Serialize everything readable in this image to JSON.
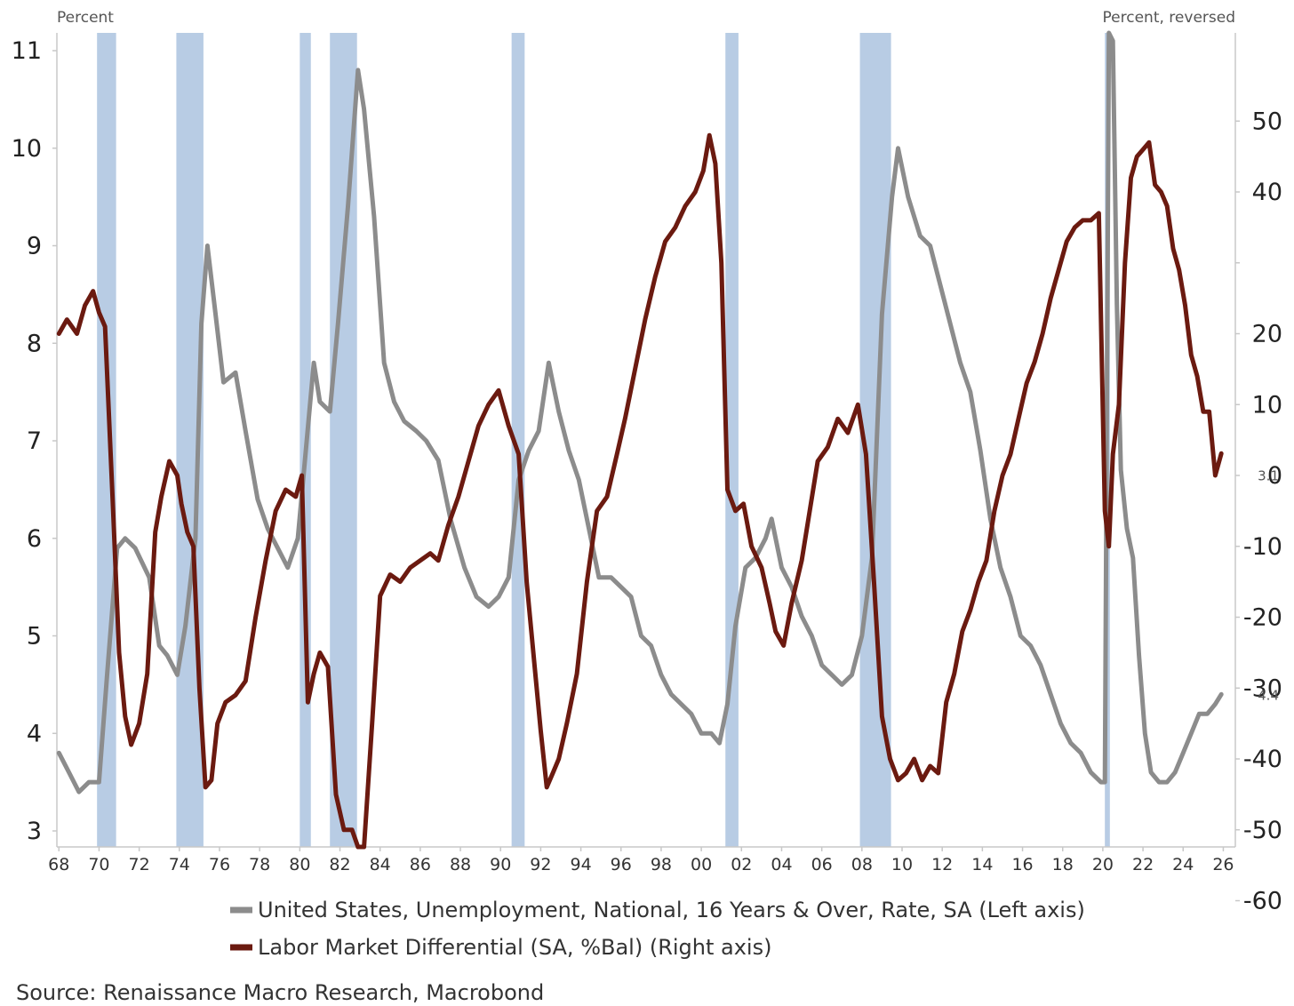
{
  "chart_data": {
    "type": "line",
    "left_axis_label": "Percent",
    "right_axis_label": "Percent, reversed",
    "left_ylim": [
      3,
      11
    ],
    "left_ticks": [
      3,
      4,
      5,
      6,
      7,
      8,
      9,
      10,
      11
    ],
    "right_ylim": [
      50,
      -60
    ],
    "right_reversed": true,
    "right_ticks": [
      50,
      40,
      30,
      20,
      10,
      0,
      -10,
      -20,
      -30,
      -40,
      -50,
      -60
    ],
    "right_tick_labels": [
      "50",
      "40",
      "",
      "20",
      "10",
      "0",
      "-10",
      "-20",
      "-30",
      "-40",
      "-50",
      "-60"
    ],
    "xlim": [
      1967.9,
      2026.6
    ],
    "x_ticks": [
      1968,
      1970,
      1972,
      1974,
      1976,
      1978,
      1980,
      1982,
      1984,
      1986,
      1988,
      1990,
      1992,
      1994,
      1996,
      1998,
      2000,
      2002,
      2004,
      2006,
      2008,
      2010,
      2012,
      2014,
      2016,
      2018,
      2020,
      2022,
      2024,
      2026
    ],
    "x_tick_labels": [
      "68",
      "70",
      "72",
      "74",
      "76",
      "78",
      "80",
      "82",
      "84",
      "86",
      "88",
      "90",
      "92",
      "94",
      "96",
      "98",
      "00",
      "02",
      "04",
      "06",
      "08",
      "10",
      "12",
      "14",
      "16",
      "18",
      "20",
      "22",
      "24",
      "26"
    ],
    "recessions": [
      [
        1969.9,
        1970.85
      ],
      [
        1973.85,
        1975.2
      ],
      [
        1980.0,
        1980.55
      ],
      [
        1981.5,
        1982.85
      ],
      [
        1990.55,
        1991.2
      ],
      [
        2001.2,
        2001.85
      ],
      [
        2007.9,
        2009.45
      ],
      [
        2020.1,
        2020.35
      ]
    ],
    "grid": false,
    "legend_position": "bottom",
    "series": [
      {
        "name": "United States, Unemployment, National, 16 Years & Over, Rate, SA (Left axis)",
        "axis": "left",
        "color": "#8c8c8c",
        "end_label": "4.4",
        "x": [
          1968.0,
          1968.5,
          1969.0,
          1969.5,
          1970.0,
          1970.4,
          1970.9,
          1971.3,
          1971.8,
          1972.5,
          1973.0,
          1973.4,
          1973.9,
          1974.3,
          1974.8,
          1975.1,
          1975.4,
          1975.8,
          1976.2,
          1976.8,
          1977.3,
          1977.9,
          1978.4,
          1978.9,
          1979.4,
          1979.9,
          1980.3,
          1980.7,
          1981.0,
          1981.5,
          1981.9,
          1982.4,
          1982.9,
          1983.2,
          1983.7,
          1984.2,
          1984.7,
          1985.2,
          1985.8,
          1986.3,
          1986.9,
          1987.5,
          1988.2,
          1988.8,
          1989.4,
          1989.9,
          1990.4,
          1990.9,
          1991.4,
          1991.9,
          1992.4,
          1992.9,
          1993.4,
          1993.9,
          1994.4,
          1994.9,
          1995.5,
          1996.0,
          1996.5,
          1997.0,
          1997.5,
          1998.0,
          1998.5,
          1999.0,
          1999.5,
          2000.0,
          2000.5,
          2000.9,
          2001.3,
          2001.7,
          2002.2,
          2002.7,
          2003.2,
          2003.5,
          2004.0,
          2004.5,
          2005.0,
          2005.5,
          2006.0,
          2006.5,
          2007.0,
          2007.5,
          2008.0,
          2008.5,
          2009.0,
          2009.5,
          2009.8,
          2010.3,
          2010.9,
          2011.4,
          2011.9,
          2012.4,
          2012.9,
          2013.4,
          2013.9,
          2014.4,
          2014.9,
          2015.4,
          2015.9,
          2016.4,
          2016.9,
          2017.4,
          2017.9,
          2018.4,
          2018.9,
          2019.4,
          2019.9,
          2020.1,
          2020.3,
          2020.5,
          2020.7,
          2020.9,
          2021.2,
          2021.5,
          2021.8,
          2022.1,
          2022.4,
          2022.8,
          2023.2,
          2023.6,
          2024.0,
          2024.4,
          2024.8,
          2025.2,
          2025.6,
          2025.9
        ],
        "values": [
          3.8,
          3.6,
          3.4,
          3.5,
          3.5,
          4.6,
          5.9,
          6.0,
          5.9,
          5.6,
          4.9,
          4.8,
          4.6,
          5.1,
          6.0,
          8.2,
          9.0,
          8.3,
          7.6,
          7.7,
          7.1,
          6.4,
          6.1,
          5.9,
          5.7,
          6.0,
          6.9,
          7.8,
          7.4,
          7.3,
          8.2,
          9.4,
          10.8,
          10.4,
          9.3,
          7.8,
          7.4,
          7.2,
          7.1,
          7.0,
          6.8,
          6.2,
          5.7,
          5.4,
          5.3,
          5.4,
          5.6,
          6.6,
          6.9,
          7.1,
          7.8,
          7.3,
          6.9,
          6.6,
          6.1,
          5.6,
          5.6,
          5.5,
          5.4,
          5.0,
          4.9,
          4.6,
          4.4,
          4.3,
          4.2,
          4.0,
          4.0,
          3.9,
          4.3,
          5.1,
          5.7,
          5.8,
          6.0,
          6.2,
          5.7,
          5.5,
          5.2,
          5.0,
          4.7,
          4.6,
          4.5,
          4.6,
          5.0,
          5.8,
          8.3,
          9.5,
          10.0,
          9.5,
          9.1,
          9.0,
          8.6,
          8.2,
          7.8,
          7.5,
          6.9,
          6.2,
          5.7,
          5.4,
          5.0,
          4.9,
          4.7,
          4.4,
          4.1,
          3.9,
          3.8,
          3.6,
          3.5,
          3.5,
          14.8,
          11.1,
          8.4,
          6.7,
          6.1,
          5.8,
          4.8,
          4.0,
          3.6,
          3.5,
          3.5,
          3.6,
          3.8,
          4.0,
          4.2,
          4.2,
          4.3,
          4.4
        ]
      },
      {
        "name": "Labor Market Differential (SA, %Bal) (Right axis)",
        "axis": "right",
        "color": "#6b1a10",
        "end_label": "3.1",
        "x": [
          1968.0,
          1968.4,
          1968.9,
          1969.3,
          1969.7,
          1970.0,
          1970.3,
          1970.7,
          1971.0,
          1971.3,
          1971.6,
          1972.0,
          1972.4,
          1972.8,
          1973.1,
          1973.5,
          1973.9,
          1974.1,
          1974.4,
          1974.7,
          1975.0,
          1975.3,
          1975.6,
          1975.9,
          1976.3,
          1976.8,
          1977.3,
          1977.8,
          1978.3,
          1978.8,
          1979.3,
          1979.8,
          1980.1,
          1980.4,
          1980.7,
          1981.0,
          1981.4,
          1981.8,
          1982.2,
          1982.6,
          1982.9,
          1983.2,
          1983.6,
          1984.0,
          1984.5,
          1985.0,
          1985.5,
          1986.0,
          1986.5,
          1986.9,
          1987.4,
          1987.9,
          1988.4,
          1988.9,
          1989.4,
          1989.9,
          1990.4,
          1990.9,
          1991.3,
          1991.7,
          1992.0,
          1992.3,
          1992.6,
          1992.9,
          1993.3,
          1993.8,
          1994.3,
          1994.8,
          1995.3,
          1995.8,
          1996.2,
          1996.7,
          1997.2,
          1997.7,
          1998.2,
          1998.7,
          1999.2,
          1999.7,
          2000.1,
          2000.4,
          2000.7,
          2001.0,
          2001.3,
          2001.7,
          2002.1,
          2002.5,
          2003.0,
          2003.4,
          2003.7,
          2004.1,
          2004.5,
          2005.0,
          2005.4,
          2005.8,
          2006.3,
          2006.8,
          2007.3,
          2007.8,
          2008.2,
          2008.6,
          2009.0,
          2009.4,
          2009.8,
          2010.2,
          2010.6,
          2011.0,
          2011.4,
          2011.8,
          2012.2,
          2012.6,
          2013.0,
          2013.4,
          2013.8,
          2014.2,
          2014.6,
          2015.0,
          2015.4,
          2015.8,
          2016.2,
          2016.6,
          2017.0,
          2017.4,
          2017.8,
          2018.2,
          2018.6,
          2019.0,
          2019.4,
          2019.8,
          2020.1,
          2020.3,
          2020.5,
          2020.8,
          2021.1,
          2021.4,
          2021.7,
          2022.0,
          2022.3,
          2022.6,
          2022.9,
          2023.2,
          2023.5,
          2023.8,
          2024.1,
          2024.4,
          2024.7,
          2025.0,
          2025.3,
          2025.6,
          2025.9
        ],
        "values": [
          20,
          22,
          20,
          24,
          26,
          23,
          21,
          -5,
          -25,
          -34,
          -38,
          -35,
          -28,
          -8,
          -3,
          2,
          0,
          -4,
          -8,
          -10,
          -30,
          -44,
          -43,
          -35,
          -32,
          -31,
          -29,
          -20,
          -12,
          -5,
          -2,
          -3,
          0,
          -32,
          -28,
          -25,
          -27,
          -45,
          -50,
          -50,
          -58,
          -55,
          -35,
          -17,
          -14,
          -15,
          -13,
          -12,
          -11,
          -12,
          -7,
          -3,
          2,
          7,
          10,
          12,
          7,
          3,
          -15,
          -27,
          -36,
          -44,
          -42,
          -40,
          -35,
          -28,
          -15,
          -5,
          -3,
          3,
          8,
          15,
          22,
          28,
          33,
          35,
          38,
          40,
          43,
          48,
          44,
          30,
          -2,
          -5,
          -4,
          -10,
          -13,
          -18,
          -22,
          -24,
          -18,
          -12,
          -5,
          2,
          4,
          8,
          6,
          10,
          3,
          -15,
          -34,
          -40,
          -43,
          -42,
          -40,
          -43,
          -41,
          -42,
          -32,
          -28,
          -22,
          -19,
          -15,
          -12,
          -5,
          0,
          3,
          8,
          13,
          16,
          20,
          25,
          29,
          33,
          35,
          36,
          36,
          37,
          -5,
          -10,
          3,
          10,
          30,
          42,
          45,
          46,
          47,
          41,
          40,
          38,
          32,
          29,
          24,
          17,
          14,
          9,
          9,
          0,
          3.1
        ]
      }
    ],
    "source": "Source: Renaissance Macro Research, Macrobond"
  }
}
